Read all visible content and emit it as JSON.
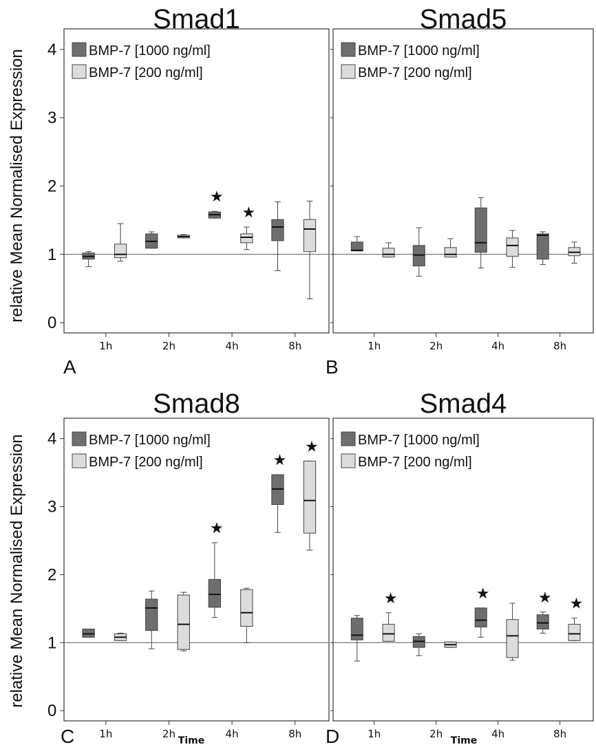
{
  "ylabel": "relative Mean Normalised Expression",
  "xlabel": "Time",
  "colors": {
    "dark": "#6e6e6e",
    "light": "#dcdcdc",
    "line": "#333333"
  },
  "chart_data": [
    {
      "type": "box",
      "title": "Smad1",
      "panel": "A",
      "categories": [
        "1h",
        "2h",
        "4h",
        "8h"
      ],
      "ylim": [
        -0.15,
        4.3
      ],
      "yticks": [
        "0",
        "1",
        "2",
        "3",
        "4"
      ],
      "reference_line": 1,
      "series": [
        {
          "name": "BMP-7 [1000 ng/ml]",
          "boxes": [
            {
              "min": 0.82,
              "q1": 0.93,
              "median": 0.97,
              "q3": 1.02,
              "max": 1.04,
              "star": false
            },
            {
              "min": 1.09,
              "q1": 1.09,
              "median": 1.19,
              "q3": 1.3,
              "max": 1.33,
              "star": false
            },
            {
              "min": 1.53,
              "q1": 1.53,
              "median": 1.58,
              "q3": 1.62,
              "max": 1.63,
              "star": true
            },
            {
              "min": 0.76,
              "q1": 1.2,
              "median": 1.4,
              "q3": 1.51,
              "max": 1.77,
              "star": false
            }
          ]
        },
        {
          "name": "BMP-7 [200 ng/ml]",
          "boxes": [
            {
              "min": 0.9,
              "q1": 0.95,
              "median": 1.0,
              "q3": 1.15,
              "max": 1.45,
              "star": false
            },
            {
              "min": 1.24,
              "q1": 1.24,
              "median": 1.26,
              "q3": 1.28,
              "max": 1.29,
              "star": false
            },
            {
              "min": 1.07,
              "q1": 1.17,
              "median": 1.25,
              "q3": 1.3,
              "max": 1.4,
              "star": true
            },
            {
              "min": 0.35,
              "q1": 1.04,
              "median": 1.37,
              "q3": 1.51,
              "max": 1.78,
              "star": false
            }
          ]
        }
      ]
    },
    {
      "type": "box",
      "title": "Smad5",
      "panel": "B",
      "categories": [
        "1h",
        "2h",
        "4h",
        "8h"
      ],
      "ylim": [
        -0.15,
        4.3
      ],
      "yticks": [
        "0",
        "1",
        "2",
        "3",
        "4"
      ],
      "reference_line": 1,
      "series": [
        {
          "name": "BMP-7 [1000 ng/ml]",
          "boxes": [
            {
              "min": 1.05,
              "q1": 1.05,
              "median": 1.06,
              "q3": 1.18,
              "max": 1.26,
              "star": false
            },
            {
              "min": 0.68,
              "q1": 0.83,
              "median": 0.99,
              "q3": 1.13,
              "max": 1.39,
              "star": false
            },
            {
              "min": 0.8,
              "q1": 1.03,
              "median": 1.17,
              "q3": 1.68,
              "max": 1.83,
              "star": false
            },
            {
              "min": 0.85,
              "q1": 0.93,
              "median": 1.28,
              "q3": 1.3,
              "max": 1.33,
              "star": false
            }
          ]
        },
        {
          "name": "BMP-7 [200 ng/ml]",
          "boxes": [
            {
              "min": 0.96,
              "q1": 0.96,
              "median": 1.0,
              "q3": 1.09,
              "max": 1.17,
              "star": false
            },
            {
              "min": 0.96,
              "q1": 0.96,
              "median": 1.0,
              "q3": 1.1,
              "max": 1.23,
              "star": false
            },
            {
              "min": 0.81,
              "q1": 0.97,
              "median": 1.13,
              "q3": 1.24,
              "max": 1.35,
              "star": false
            },
            {
              "min": 0.87,
              "q1": 0.98,
              "median": 1.03,
              "q3": 1.1,
              "max": 1.18,
              "star": false
            }
          ]
        }
      ]
    },
    {
      "type": "box",
      "title": "Smad8",
      "panel": "C",
      "categories": [
        "1h",
        "2h",
        "4h",
        "8h"
      ],
      "ylim": [
        -0.15,
        4.3
      ],
      "yticks": [
        "0",
        "1",
        "2",
        "3",
        "4"
      ],
      "reference_line": 1,
      "series": [
        {
          "name": "BMP-7 [1000 ng/ml]",
          "boxes": [
            {
              "min": 1.08,
              "q1": 1.08,
              "median": 1.13,
              "q3": 1.2,
              "max": 1.2,
              "star": false
            },
            {
              "min": 0.91,
              "q1": 1.18,
              "median": 1.51,
              "q3": 1.64,
              "max": 1.76,
              "star": false
            },
            {
              "min": 1.37,
              "q1": 1.52,
              "median": 1.71,
              "q3": 1.93,
              "max": 2.47,
              "star": true
            },
            {
              "min": 2.62,
              "q1": 3.03,
              "median": 3.26,
              "q3": 3.47,
              "max": 3.47,
              "star": true
            }
          ]
        },
        {
          "name": "BMP-7 [200 ng/ml]",
          "boxes": [
            {
              "min": 1.03,
              "q1": 1.03,
              "median": 1.08,
              "q3": 1.13,
              "max": 1.14,
              "star": false
            },
            {
              "min": 0.88,
              "q1": 0.9,
              "median": 1.27,
              "q3": 1.7,
              "max": 1.74,
              "star": false
            },
            {
              "min": 1.0,
              "q1": 1.24,
              "median": 1.44,
              "q3": 1.78,
              "max": 1.8,
              "star": false
            },
            {
              "min": 2.36,
              "q1": 2.61,
              "median": 3.09,
              "q3": 3.67,
              "max": 3.67,
              "star": true
            }
          ]
        }
      ]
    },
    {
      "type": "box",
      "title": "Smad4",
      "panel": "D",
      "categories": [
        "1h",
        "2h",
        "4h",
        "8h"
      ],
      "ylim": [
        -0.15,
        4.3
      ],
      "yticks": [
        "0",
        "1",
        "2",
        "3",
        "4"
      ],
      "reference_line": 1,
      "series": [
        {
          "name": "BMP-7 [1000 ng/ml]",
          "boxes": [
            {
              "min": 0.73,
              "q1": 1.04,
              "median": 1.11,
              "q3": 1.36,
              "max": 1.4,
              "star": false
            },
            {
              "min": 0.81,
              "q1": 0.93,
              "median": 1.02,
              "q3": 1.09,
              "max": 1.13,
              "star": false
            },
            {
              "min": 1.08,
              "q1": 1.23,
              "median": 1.33,
              "q3": 1.51,
              "max": 1.51,
              "star": true
            },
            {
              "min": 1.14,
              "q1": 1.2,
              "median": 1.29,
              "q3": 1.41,
              "max": 1.45,
              "star": true
            }
          ]
        },
        {
          "name": "BMP-7 [200 ng/ml]",
          "boxes": [
            {
              "min": 1.02,
              "q1": 1.02,
              "median": 1.13,
              "q3": 1.27,
              "max": 1.44,
              "star": true
            },
            {
              "min": 0.93,
              "q1": 0.93,
              "median": 0.97,
              "q3": 1.01,
              "max": 1.01,
              "star": false
            },
            {
              "min": 0.74,
              "q1": 0.78,
              "median": 1.1,
              "q3": 1.34,
              "max": 1.58,
              "star": false
            },
            {
              "min": 1.03,
              "q1": 1.03,
              "median": 1.13,
              "q3": 1.27,
              "max": 1.36,
              "star": true
            }
          ]
        }
      ]
    }
  ]
}
